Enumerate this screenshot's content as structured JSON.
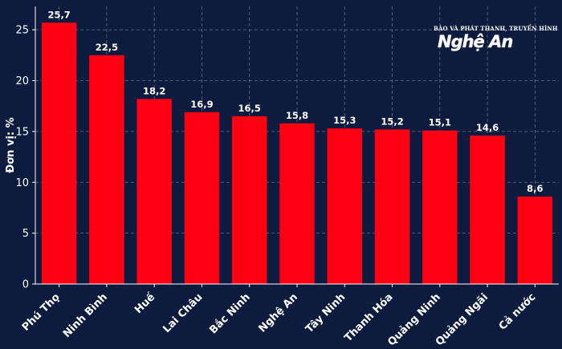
{
  "logo": {
    "top_text": "BÁO VÀ PHÁT THANH, TRUYỀN HÌNH",
    "brand_text": "Nghệ An"
  },
  "colors": {
    "background": "#0c1b3e",
    "bar": "#ff0013",
    "grid": "#8a93a8",
    "text": "#ffffff"
  },
  "chart_data": {
    "type": "bar",
    "categories": [
      "Phú Thọ",
      "Ninh Bình",
      "Huế",
      "Lai Châu",
      "Bắc Ninh",
      "Nghệ An",
      "Tây Ninh",
      "Thanh Hóa",
      "Quảng Ninh",
      "Quảng Ngãi",
      "Cả nước"
    ],
    "values": [
      25.7,
      22.5,
      18.2,
      16.9,
      16.5,
      15.8,
      15.3,
      15.2,
      15.1,
      14.6,
      8.6
    ],
    "value_labels": [
      "25,7",
      "22,5",
      "18,2",
      "16,9",
      "16,5",
      "15,8",
      "15,3",
      "15,2",
      "15,1",
      "14,6",
      "8,6"
    ],
    "ylabel": "Đơn vị: %",
    "ylim": [
      0,
      27.3
    ],
    "yticks": [
      0,
      5,
      10,
      15,
      20,
      25
    ],
    "grid": true
  }
}
